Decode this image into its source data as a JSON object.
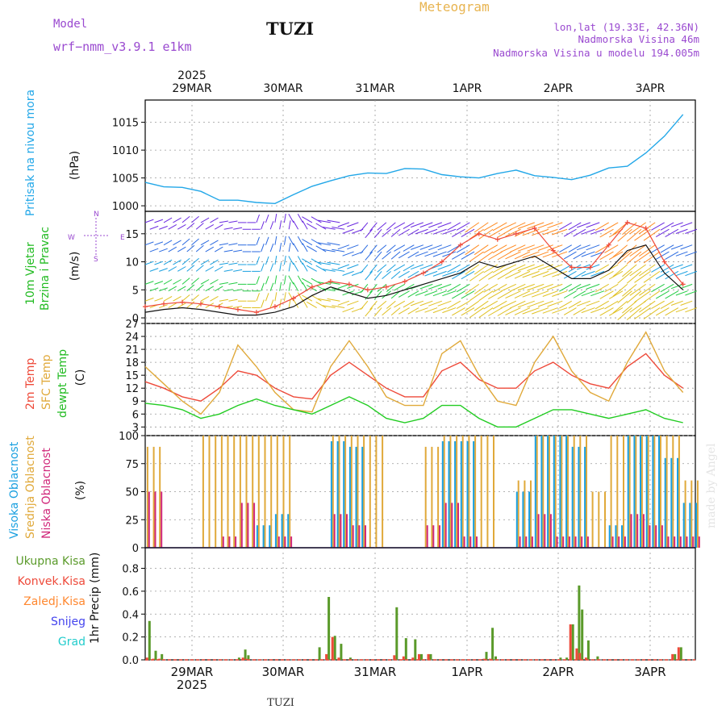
{
  "header": {
    "model_label": "Model",
    "model_name": "wrf−nmm_v3.9.1  e1km",
    "station": "TUZI",
    "meteogram_title": "Meteogram",
    "lonlat": "lon,lat (19.33E, 42.36N)",
    "elevation": "Nadmorska Visina 46m",
    "model_elevation": "Nadmorska Visina u modelu 194.005m",
    "footer_station": "TUZI",
    "watermark": "made by Angel",
    "year_top": "2025",
    "year_bottom": "2025"
  },
  "colors": {
    "pressure": "#22a7e8",
    "temp2m": "#ee4a3a",
    "sfc_temp": "#e0a93a",
    "dewpoint": "#22cc22",
    "high_cloud": "#1aa0e0",
    "mid_cloud": "#e0a93a",
    "low_cloud": "#d0287a",
    "precip_total": "#5a9a2a",
    "precip_convective": "#ee4a3a",
    "precip_frozen": "#ff8830",
    "snow": "#4444ee",
    "graupel": "#22cccc",
    "wind_label": "#22bb22",
    "axis_purple": "#9a4ad0"
  },
  "chart_data": [
    {
      "type": "line",
      "panel": "pressure",
      "ylabel": "Pritisak na nivou mora",
      "unit": "(hPa)",
      "ylim": [
        999,
        1019
      ],
      "yticks": [
        1000,
        1005,
        1010,
        1015
      ],
      "x_day_labels": [
        "29MAR",
        "30MAR",
        "31MAR",
        "1APR",
        "2APR",
        "3APR"
      ],
      "x_hours": [
        0,
        6,
        12,
        18,
        24,
        30,
        36,
        42,
        48,
        54,
        60,
        66,
        72,
        78,
        84,
        90,
        96,
        102,
        108,
        114,
        120,
        126,
        132,
        138,
        144,
        150,
        156,
        162,
        168,
        174
      ],
      "series": [
        {
          "values": [
            1004.2,
            1003.4,
            1003.3,
            1002.6,
            1001.0,
            1001.0,
            1000.6,
            1000.4,
            1002.0,
            1003.5,
            1004.5,
            1005.4,
            1005.9,
            1005.8,
            1006.7,
            1006.6,
            1005.6,
            1005.2,
            1005.0,
            1005.8,
            1006.4,
            1005.4,
            1005.1,
            1004.7,
            1005.5,
            1006.8,
            1007.1,
            1009.5,
            1012.5,
            1016.4
          ]
        }
      ]
    },
    {
      "type": "line",
      "panel": "wind",
      "ylabel": "10m Vjetar Brzina i Pravac",
      "unit": "(m/s)",
      "ylim": [
        -1,
        19
      ],
      "yticks": [
        0,
        5,
        10,
        15
      ],
      "compass": [
        "W",
        "E",
        "N",
        "S"
      ],
      "x_hours": [
        0,
        6,
        12,
        18,
        24,
        30,
        36,
        42,
        48,
        54,
        60,
        66,
        72,
        78,
        84,
        90,
        96,
        102,
        108,
        114,
        120,
        126,
        132,
        138,
        144,
        150,
        156,
        162,
        168,
        174
      ],
      "series": [
        {
          "name": "speed",
          "values": [
            1.0,
            1.5,
            1.8,
            1.5,
            1.0,
            0.5,
            0.5,
            1.0,
            2.0,
            4.0,
            5.5,
            4.5,
            3.5,
            4.0,
            5.0,
            6.0,
            7.0,
            8.0,
            10.0,
            9.0,
            10.0,
            11.0,
            9.0,
            7.0,
            7.0,
            8.5,
            12.0,
            13.0,
            8.0,
            5.0
          ]
        },
        {
          "name": "gust",
          "values": [
            2.0,
            2.5,
            2.8,
            2.5,
            2.0,
            1.5,
            1.0,
            2.0,
            3.5,
            5.5,
            6.5,
            6.0,
            5.0,
            5.5,
            6.5,
            8.0,
            10.0,
            13.0,
            15.0,
            14.0,
            15.0,
            16.0,
            12.0,
            9.0,
            9.0,
            13.0,
            17.0,
            16.0,
            10.0,
            6.0
          ]
        }
      ],
      "wind_dir_deg": [
        70,
        60,
        50,
        60,
        80,
        90,
        20,
        10,
        330,
        300,
        280,
        250,
        220,
        230,
        240,
        250,
        250,
        240,
        235,
        240,
        245,
        250,
        250,
        240,
        250,
        240,
        230,
        235,
        240,
        250
      ]
    },
    {
      "type": "line",
      "panel": "temperature",
      "ylabel": "2m Temp",
      "ylabel2": "SFC Temp",
      "ylabel3": "dewpt Temp",
      "unit": "(C)",
      "ylim": [
        1,
        27
      ],
      "yticks": [
        3,
        6,
        9,
        12,
        15,
        18,
        21,
        24,
        27
      ],
      "x_hours": [
        0,
        6,
        12,
        18,
        24,
        30,
        36,
        42,
        48,
        54,
        60,
        66,
        72,
        78,
        84,
        90,
        96,
        102,
        108,
        114,
        120,
        126,
        132,
        138,
        144,
        150,
        156,
        162,
        168,
        174
      ],
      "series": [
        {
          "name": "2m Temp",
          "values": [
            13.5,
            12,
            10,
            9,
            12,
            16,
            15,
            12,
            10,
            9.5,
            15,
            18,
            15,
            12,
            10,
            10,
            16,
            18,
            14,
            12,
            12,
            16,
            18,
            15,
            13,
            12,
            17,
            20,
            15,
            12
          ]
        },
        {
          "name": "SFC Temp",
          "values": [
            17,
            13,
            9,
            6,
            11,
            22,
            17,
            11,
            7,
            6.5,
            17,
            23,
            17,
            10,
            8,
            8,
            20,
            23,
            15,
            9,
            8,
            18,
            24,
            16,
            11,
            9,
            18,
            25,
            16,
            11
          ]
        },
        {
          "name": "dewpt Temp",
          "values": [
            8.5,
            8,
            7,
            5,
            6,
            8,
            9.5,
            8,
            7,
            6,
            8,
            10,
            8,
            5,
            4,
            5,
            8,
            8,
            5,
            3,
            3,
            5,
            7,
            7,
            6,
            5,
            6,
            7,
            5,
            4
          ]
        }
      ]
    },
    {
      "type": "bar",
      "panel": "clouds",
      "ylabel": "Visoka Oblacnost",
      "ylabel2": "Srednja Oblacnost",
      "ylabel3": "Niska Oblacnost",
      "unit": "(%)",
      "ylim": [
        0,
        100
      ],
      "yticks": [
        0,
        25,
        50,
        75,
        100
      ],
      "x_hours": [
        0,
        6,
        12,
        18,
        24,
        30,
        36,
        42,
        48,
        54,
        60,
        66,
        72,
        78,
        84,
        90,
        96,
        102,
        108,
        114,
        120,
        126,
        132,
        138,
        144,
        150,
        156,
        162,
        168,
        174
      ],
      "series": [
        {
          "name": "Visoka Oblacnost",
          "values": [
            0,
            0,
            0,
            0,
            0,
            0,
            20,
            30,
            0,
            0,
            95,
            90,
            0,
            0,
            0,
            0,
            95,
            95,
            0,
            0,
            50,
            100,
            100,
            90,
            0,
            20,
            100,
            100,
            80,
            40
          ]
        },
        {
          "name": "Srednja Oblacnost",
          "values": [
            90,
            0,
            0,
            100,
            100,
            100,
            100,
            100,
            0,
            0,
            100,
            100,
            100,
            0,
            0,
            90,
            100,
            100,
            100,
            0,
            60,
            100,
            100,
            100,
            50,
            100,
            100,
            100,
            100,
            60
          ]
        },
        {
          "name": "Niska Oblacnost",
          "values": [
            50,
            0,
            0,
            0,
            10,
            40,
            0,
            10,
            0,
            0,
            30,
            20,
            0,
            0,
            0,
            20,
            40,
            10,
            0,
            0,
            10,
            30,
            10,
            10,
            0,
            10,
            30,
            20,
            10,
            10
          ]
        }
      ]
    },
    {
      "type": "bar",
      "panel": "precipitation",
      "ylabel": "1hr Precip (mm)",
      "legend": [
        "Ukupna Kisa",
        "Konvek.Kisa",
        "Zaledj.Kisa",
        "Snijeg",
        "Grad"
      ],
      "ylim": [
        0,
        0.98
      ],
      "yticks": [
        0,
        0.2,
        0.4,
        0.6,
        0.8
      ],
      "x_day_labels": [
        "29MAR",
        "30MAR",
        "31MAR",
        "1APR",
        "2APR",
        "3APR"
      ],
      "x_hours": [
        1,
        3,
        5,
        10,
        30,
        32,
        33,
        56,
        59,
        61,
        63,
        66,
        81,
        84,
        87,
        89,
        92,
        110,
        112,
        113,
        134,
        136,
        138,
        140,
        141,
        143,
        146,
        171,
        173
      ],
      "series": [
        {
          "name": "Ukupna Kisa",
          "values": [
            0.34,
            0.08,
            0.05,
            0,
            0.02,
            0.09,
            0.04,
            0.11,
            0.55,
            0.21,
            0.14,
            0.02,
            0.46,
            0.19,
            0.18,
            0.05,
            0.05,
            0.07,
            0.28,
            0.03,
            0.02,
            0.02,
            0.31,
            0.65,
            0.44,
            0.17,
            0.03,
            0.05,
            0.11
          ]
        },
        {
          "name": "Konvek.Kisa",
          "values": [
            0.02,
            0.01,
            0.01,
            0,
            0,
            0.02,
            0.01,
            0,
            0.05,
            0.2,
            0.02,
            0,
            0.04,
            0.03,
            0.02,
            0.05,
            0.05,
            0.01,
            0.01,
            0,
            0,
            0,
            0.31,
            0.1,
            0.06,
            0.02,
            0,
            0.05,
            0.11
          ]
        }
      ]
    }
  ]
}
